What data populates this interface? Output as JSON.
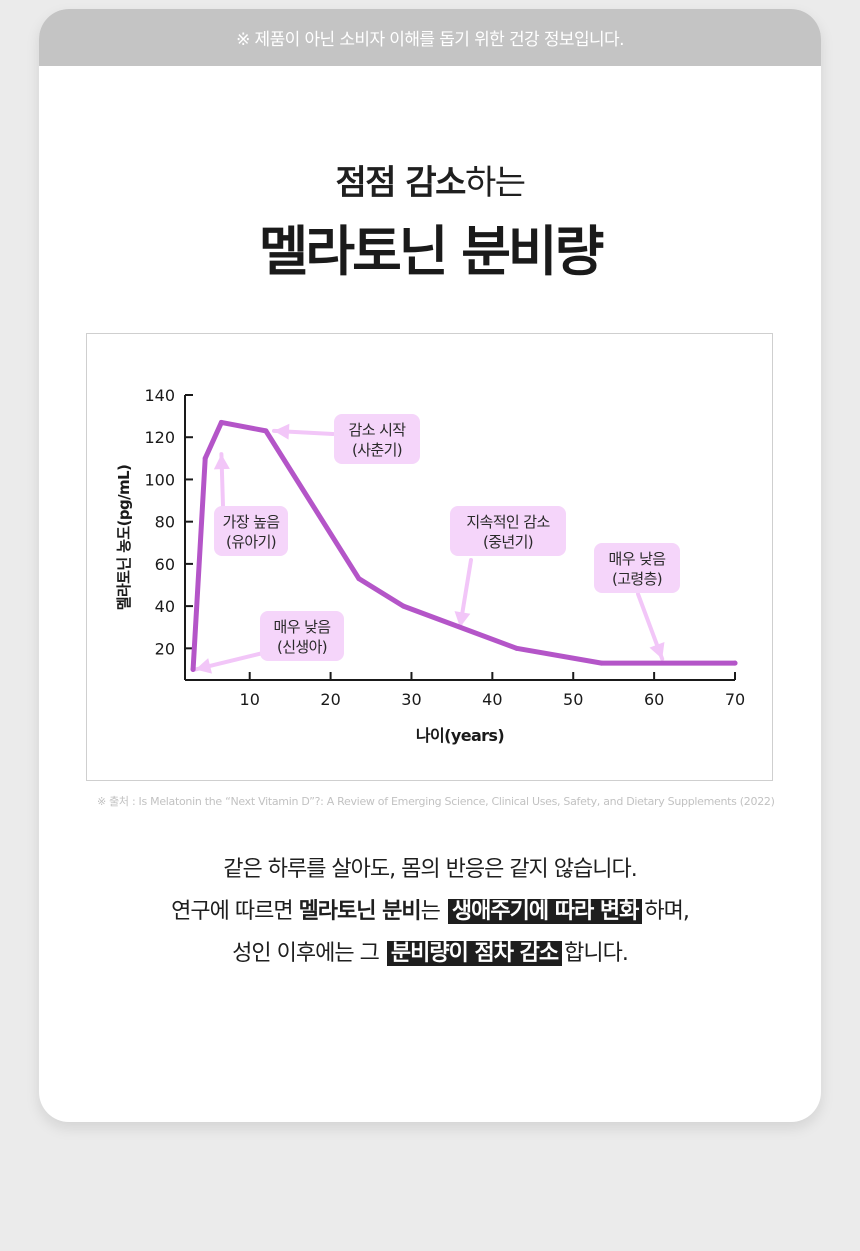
{
  "banner": "※ 제품이 아닌 소비자 이해를 돕기 위한 건강 정보입니다.",
  "title": {
    "line1_bold": "점점 감소",
    "line1_rest": "하는",
    "line2": "멜라토닌 분비량"
  },
  "colors": {
    "line": "#b455c8",
    "callout_bg": "#f5d5fa",
    "arrow": "#f2c6f8",
    "highlight_bg": "#1e1e1e",
    "banner_bg": "#c4c4c4"
  },
  "chart_data": {
    "type": "line",
    "xlabel": "나이(years)",
    "ylabel": "멜라토닌 농도(pg/mL)",
    "xlim": [
      2,
      70
    ],
    "ylim": [
      5,
      140
    ],
    "x_ticks": [
      10,
      20,
      30,
      40,
      50,
      60,
      70
    ],
    "y_ticks": [
      20,
      40,
      60,
      80,
      100,
      120,
      140
    ],
    "series": [
      {
        "x": [
          3,
          4.5,
          6.5,
          12,
          23.5,
          29,
          43,
          53.5,
          70
        ],
        "y": [
          10,
          110,
          127,
          123,
          53,
          40,
          20,
          13,
          13
        ]
      }
    ],
    "annotations": [
      {
        "text": [
          "매우 낮음",
          "(신생아)"
        ],
        "x": 3.3,
        "y": 10
      },
      {
        "text": [
          "가장 높음",
          "(유아기)"
        ],
        "x": 6.5,
        "y": 112
      },
      {
        "text": [
          "감소 시작",
          "(사춘기)"
        ],
        "x": 13,
        "y": 123
      },
      {
        "text": [
          "지속적인 감소",
          "(중년기)"
        ],
        "x": 36,
        "y": 30
      },
      {
        "text": [
          "매우 낮음",
          "(고령층)"
        ],
        "x": 61,
        "y": 15
      }
    ]
  },
  "source": "※ 출처 : Is Melatonin the “Next Vitamin D”?: A Review of Emerging Science, Clinical Uses, Safety, and Dietary Supplements (2022)",
  "body": {
    "line1": "같은 하루를 살아도, 몸의 반응은 같지 않습니다.",
    "line2_a": "연구에 따르면 ",
    "line2_b": "멜라토닌 분비",
    "line2_c": "는 ",
    "line2_hl": "생애주기에 따라 변화",
    "line2_d": "하며,",
    "line3_a": "성인 이후에는 그 ",
    "line3_hl": "분비량이 점차 감소",
    "line3_b": "합니다."
  }
}
